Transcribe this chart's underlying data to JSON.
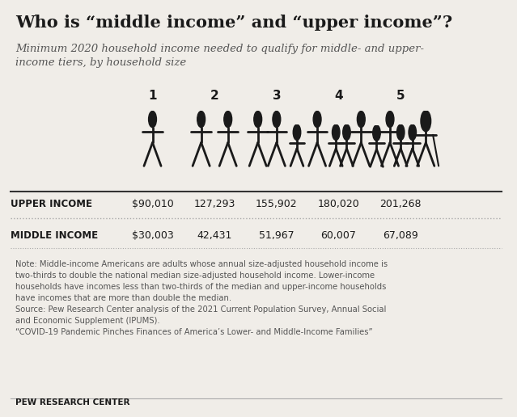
{
  "title": "Who is “middle income” and “upper income”?",
  "subtitle": "Minimum 2020 household income needed to qualify for middle- and upper-\nincome tiers, by household size",
  "household_sizes": [
    1,
    2,
    3,
    4,
    5
  ],
  "upper_income": [
    "$90,010",
    "127,293",
    "155,902",
    "180,020",
    "201,268"
  ],
  "middle_income": [
    "$30,003",
    "42,431",
    "51,967",
    "60,007",
    "67,089"
  ],
  "upper_label": "UPPER INCOME",
  "middle_label": "MIDDLE INCOME",
  "note_text": "Note: Middle-income Americans are adults whose annual size-adjusted household income is\ntwo-thirds to double the national median size-adjusted household income. Lower-income\nhouseholds have incomes less than two-thirds of the median and upper-income households\nhave incomes that are more than double the median.\nSource: Pew Research Center analysis of the 2021 Current Population Survey, Annual Social\nand Economic Supplement (IPUMS).\n“COVID-19 Pandemic Pinches Finances of America’s Lower- and Middle-Income Families”",
  "footer": "PEW RESEARCH CENTER",
  "bg_color": "#f0ede8",
  "text_color": "#1a1a1a",
  "gray_color": "#555555",
  "light_gray": "#888888"
}
